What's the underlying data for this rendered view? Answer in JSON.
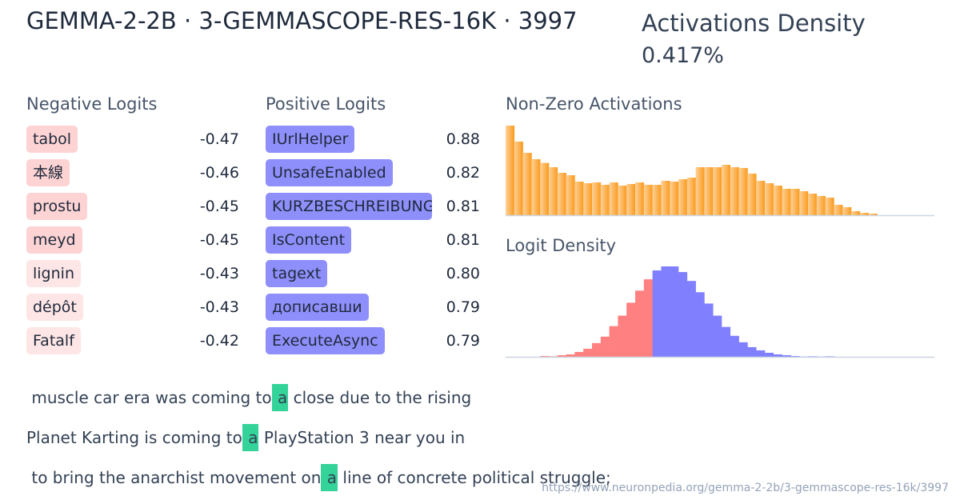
{
  "header": {
    "title": "GEMMA-2-2B · 3-GEMMASCOPE-RES-16K · 3997",
    "density_label": "Activations Density",
    "density_value": "0.417%"
  },
  "negative": {
    "label": "Negative Logits",
    "items": [
      {
        "token": "tabol",
        "value": "-0.47"
      },
      {
        "token": "本線",
        "value": "-0.46"
      },
      {
        "token": " prostu",
        "value": "-0.45"
      },
      {
        "token": " meyd",
        "value": "-0.45"
      },
      {
        "token": " lignin",
        "value": "-0.43"
      },
      {
        "token": " dépôt",
        "value": "-0.43"
      },
      {
        "token": "Fatalf",
        "value": "-0.42"
      }
    ]
  },
  "positive": {
    "label": "Positive Logits",
    "items": [
      {
        "token": "IUrlHelper",
        "value": "0.88"
      },
      {
        "token": "UnsafeEnabled",
        "value": "0.82"
      },
      {
        "token": "KURZBESCHREIBUNG",
        "value": "0.81"
      },
      {
        "token": "IsContent",
        "value": "0.81"
      },
      {
        "token": "tagext",
        "value": "0.80"
      },
      {
        "token": " дописавши",
        "value": "0.79"
      },
      {
        "token": " ExecuteAsync",
        "value": "0.79"
      }
    ]
  },
  "colors": {
    "neg_strong": "#fdd3d3",
    "neg_light": "#fee6e6",
    "pos": "#8f8ffb",
    "highlight": "#34d399",
    "act_start": "#fdd29a",
    "act_end": "#fb9a1c",
    "logit_neg": "#ff8080",
    "logit_pos": "#8080ff"
  },
  "chart_data": [
    {
      "type": "bar",
      "title": "Non-Zero Activations",
      "values": [
        336,
        276,
        234,
        210,
        196,
        180,
        159,
        150,
        126,
        120,
        123,
        114,
        123,
        111,
        117,
        123,
        114,
        114,
        129,
        126,
        135,
        141,
        180,
        180,
        180,
        189,
        180,
        177,
        156,
        129,
        120,
        111,
        99,
        99,
        90,
        81,
        72,
        66,
        39,
        30,
        15,
        9,
        6
      ]
    },
    {
      "type": "bar",
      "title": "Logit Density",
      "negative_values": [
        0,
        0,
        0,
        0,
        3,
        2,
        6,
        9,
        18,
        30,
        51,
        75,
        114,
        153,
        201,
        246,
        288
      ],
      "positive_values": [
        321,
        336,
        336,
        315,
        282,
        240,
        198,
        153,
        111,
        78,
        54,
        36,
        24,
        15,
        9,
        6,
        3,
        1,
        2,
        1,
        2
      ]
    }
  ],
  "contexts": [
    {
      "before": " muscle car era was coming to",
      "token": " a",
      "after": " close due to the rising"
    },
    {
      "before": "Planet Karting is coming to",
      "token": " a",
      "after": " PlayStation 3 near you in"
    },
    {
      "before": " to bring the anarchist movement on",
      "token": " a",
      "after": " line of concrete political struggle;"
    }
  ],
  "footer": {
    "url": "https://www.neuronpedia.org/gemma-2-2b/3-gemmascope-res-16k/3997"
  }
}
